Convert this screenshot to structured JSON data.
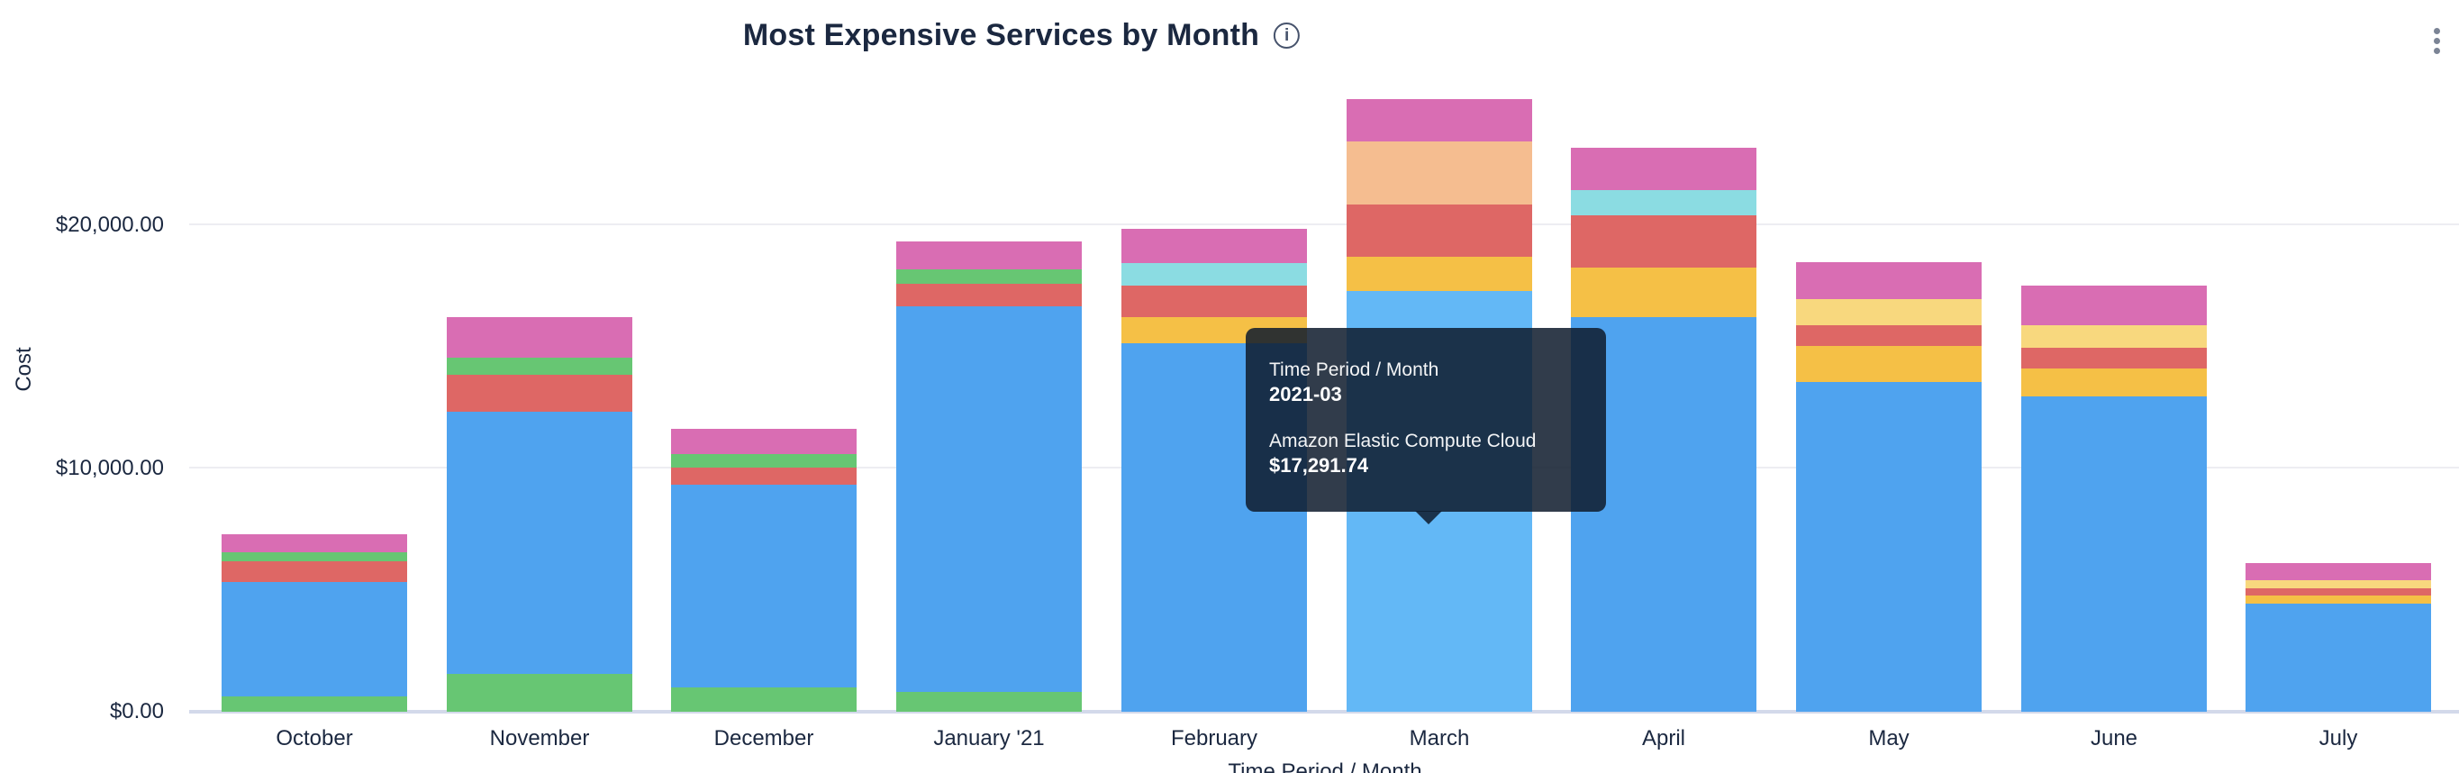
{
  "header": {
    "title": "Most Expensive Services by Month",
    "info_icon": "i",
    "menu_icon": "kebab-vertical"
  },
  "tooltip": {
    "dimension_label": "Time Period / Month",
    "dimension_value": "2021-03",
    "series_label": "Amazon Elastic Compute Cloud",
    "series_value": "$17,291.74"
  },
  "colors": {
    "blue": "#4FA3EF",
    "blue_highlight": "#63B8F6",
    "green": "#67C673",
    "red": "#DE6765",
    "pink": "#D96DB3",
    "amber": "#F5C046",
    "pale_yellow": "#F8D87E",
    "teal": "#8BDCE2",
    "peach": "#F5BD90",
    "axis_text": "#1b2840",
    "baseline": "#d3d9ea",
    "gridline": "#ededf2"
  },
  "chart_data": {
    "type": "bar",
    "stacked": true,
    "title": "Most Expensive Services by Month",
    "xlabel": "Time Period / Month",
    "ylabel": "Cost",
    "y_ticks": [
      "$20,000.00",
      "$10,000.00",
      "$0.00"
    ],
    "y_tick_values": [
      20000,
      10000,
      0
    ],
    "ylim": [
      0,
      26000
    ],
    "grid": true,
    "legend": "none",
    "categories": [
      "October",
      "November",
      "December",
      "January '21",
      "February",
      "March",
      "April",
      "May",
      "June",
      "July"
    ],
    "highlighted_category": "March",
    "known_series_name_for_blue": "Amazon Elastic Compute Cloud",
    "bars": [
      {
        "month": "October",
        "total": 7285,
        "segments": [
          {
            "color": "green",
            "value": 629
          },
          {
            "color": "blue",
            "value": 4696
          },
          {
            "color": "red",
            "value": 850
          },
          {
            "color": "green",
            "value": 370
          },
          {
            "color": "pink",
            "value": 740
          }
        ]
      },
      {
        "month": "November",
        "total": 16208,
        "segments": [
          {
            "color": "green",
            "value": 1543
          },
          {
            "color": "blue",
            "value": 10800
          },
          {
            "color": "red",
            "value": 1494
          },
          {
            "color": "green",
            "value": 704
          },
          {
            "color": "pink",
            "value": 1667
          }
        ]
      },
      {
        "month": "December",
        "total": 11633,
        "segments": [
          {
            "color": "green",
            "value": 1010
          },
          {
            "color": "blue",
            "value": 8340
          },
          {
            "color": "red",
            "value": 703
          },
          {
            "color": "green",
            "value": 555
          },
          {
            "color": "pink",
            "value": 1025
          }
        ]
      },
      {
        "month": "January '21",
        "total": 19326,
        "segments": [
          {
            "color": "green",
            "value": 803
          },
          {
            "color": "blue",
            "value": 15847
          },
          {
            "color": "red",
            "value": 951
          },
          {
            "color": "green",
            "value": 592
          },
          {
            "color": "pink",
            "value": 1133
          }
        ]
      },
      {
        "month": "February",
        "total": 19832,
        "segments": [
          {
            "color": "blue",
            "value": 15133
          },
          {
            "color": "amber",
            "value": 1084
          },
          {
            "color": "red",
            "value": 1295
          },
          {
            "color": "teal",
            "value": 925
          },
          {
            "color": "pink",
            "value": 1395
          }
        ]
      },
      {
        "month": "March",
        "total": 25183.74,
        "segments": [
          {
            "color": "blue_highlight",
            "value": 17291.74
          },
          {
            "color": "amber",
            "value": 1417
          },
          {
            "color": "red",
            "value": 2157
          },
          {
            "color": "peach",
            "value": 2590
          },
          {
            "color": "pink",
            "value": 1728
          }
        ]
      },
      {
        "month": "April",
        "total": 23187,
        "segments": [
          {
            "color": "blue",
            "value": 16218
          },
          {
            "color": "amber",
            "value": 2035
          },
          {
            "color": "red",
            "value": 2158
          },
          {
            "color": "teal",
            "value": 1048
          },
          {
            "color": "pink",
            "value": 1728
          }
        ]
      },
      {
        "month": "May",
        "total": 18500,
        "segments": [
          {
            "color": "blue",
            "value": 13542
          },
          {
            "color": "amber",
            "value": 1504
          },
          {
            "color": "red",
            "value": 863
          },
          {
            "color": "pale_yellow",
            "value": 1048
          },
          {
            "color": "pink",
            "value": 1543
          }
        ]
      },
      {
        "month": "June",
        "total": 17513,
        "segments": [
          {
            "color": "blue",
            "value": 12950
          },
          {
            "color": "amber",
            "value": 1172
          },
          {
            "color": "red",
            "value": 863
          },
          {
            "color": "pale_yellow",
            "value": 925
          },
          {
            "color": "pink",
            "value": 1603
          }
        ]
      },
      {
        "month": "July",
        "total": 6105,
        "segments": [
          {
            "color": "blue",
            "value": 4440
          },
          {
            "color": "amber",
            "value": 333
          },
          {
            "color": "red",
            "value": 307
          },
          {
            "color": "pale_yellow",
            "value": 322
          },
          {
            "color": "pink",
            "value": 703
          }
        ]
      }
    ]
  }
}
